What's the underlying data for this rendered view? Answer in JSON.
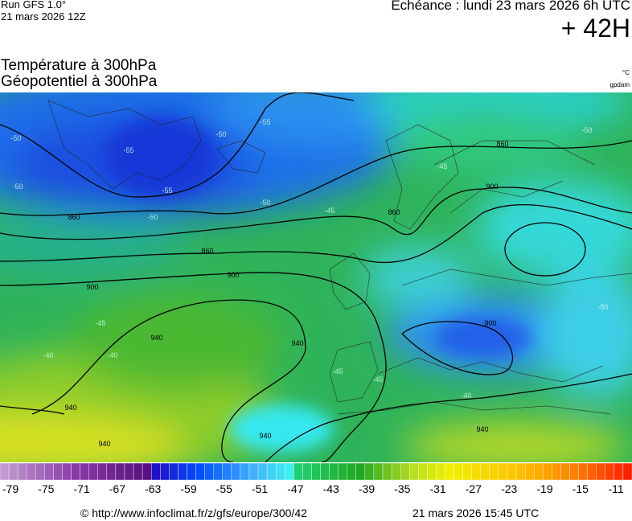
{
  "header": {
    "run": "Run GFS 1.0°",
    "run_date": "21 mars 2026 12Z",
    "valid": "Echéance : lundi 23 mars 2026 6h UTC",
    "lead": "+ 42H"
  },
  "titles": [
    "Température à 300hPa",
    "Géopotentiel à 300hPa"
  ],
  "units": [
    "°C",
    "gpdam"
  ],
  "map": {
    "height_labels": [
      860,
      860,
      860,
      860,
      900,
      900,
      900,
      900,
      940,
      940,
      940,
      940,
      940,
      940
    ],
    "temp_labels": [
      -50,
      -55,
      -50,
      -55,
      -50,
      -55,
      -50,
      -45,
      -50,
      -45,
      -45,
      -40,
      -40,
      -45,
      -45,
      -40,
      -50,
      -50
    ]
  },
  "colorbar": {
    "labels": [
      -79,
      -75,
      -71,
      -67,
      -63,
      -59,
      -55,
      -51,
      -47,
      -43,
      -39,
      -35,
      -31,
      -27,
      -23,
      -19,
      -15,
      -11
    ]
  },
  "footer": {
    "source": "© http://www.infoclimat.fr/z/gfs/europe/300/42",
    "generated": "21 mars 2026 15:45 UTC"
  }
}
